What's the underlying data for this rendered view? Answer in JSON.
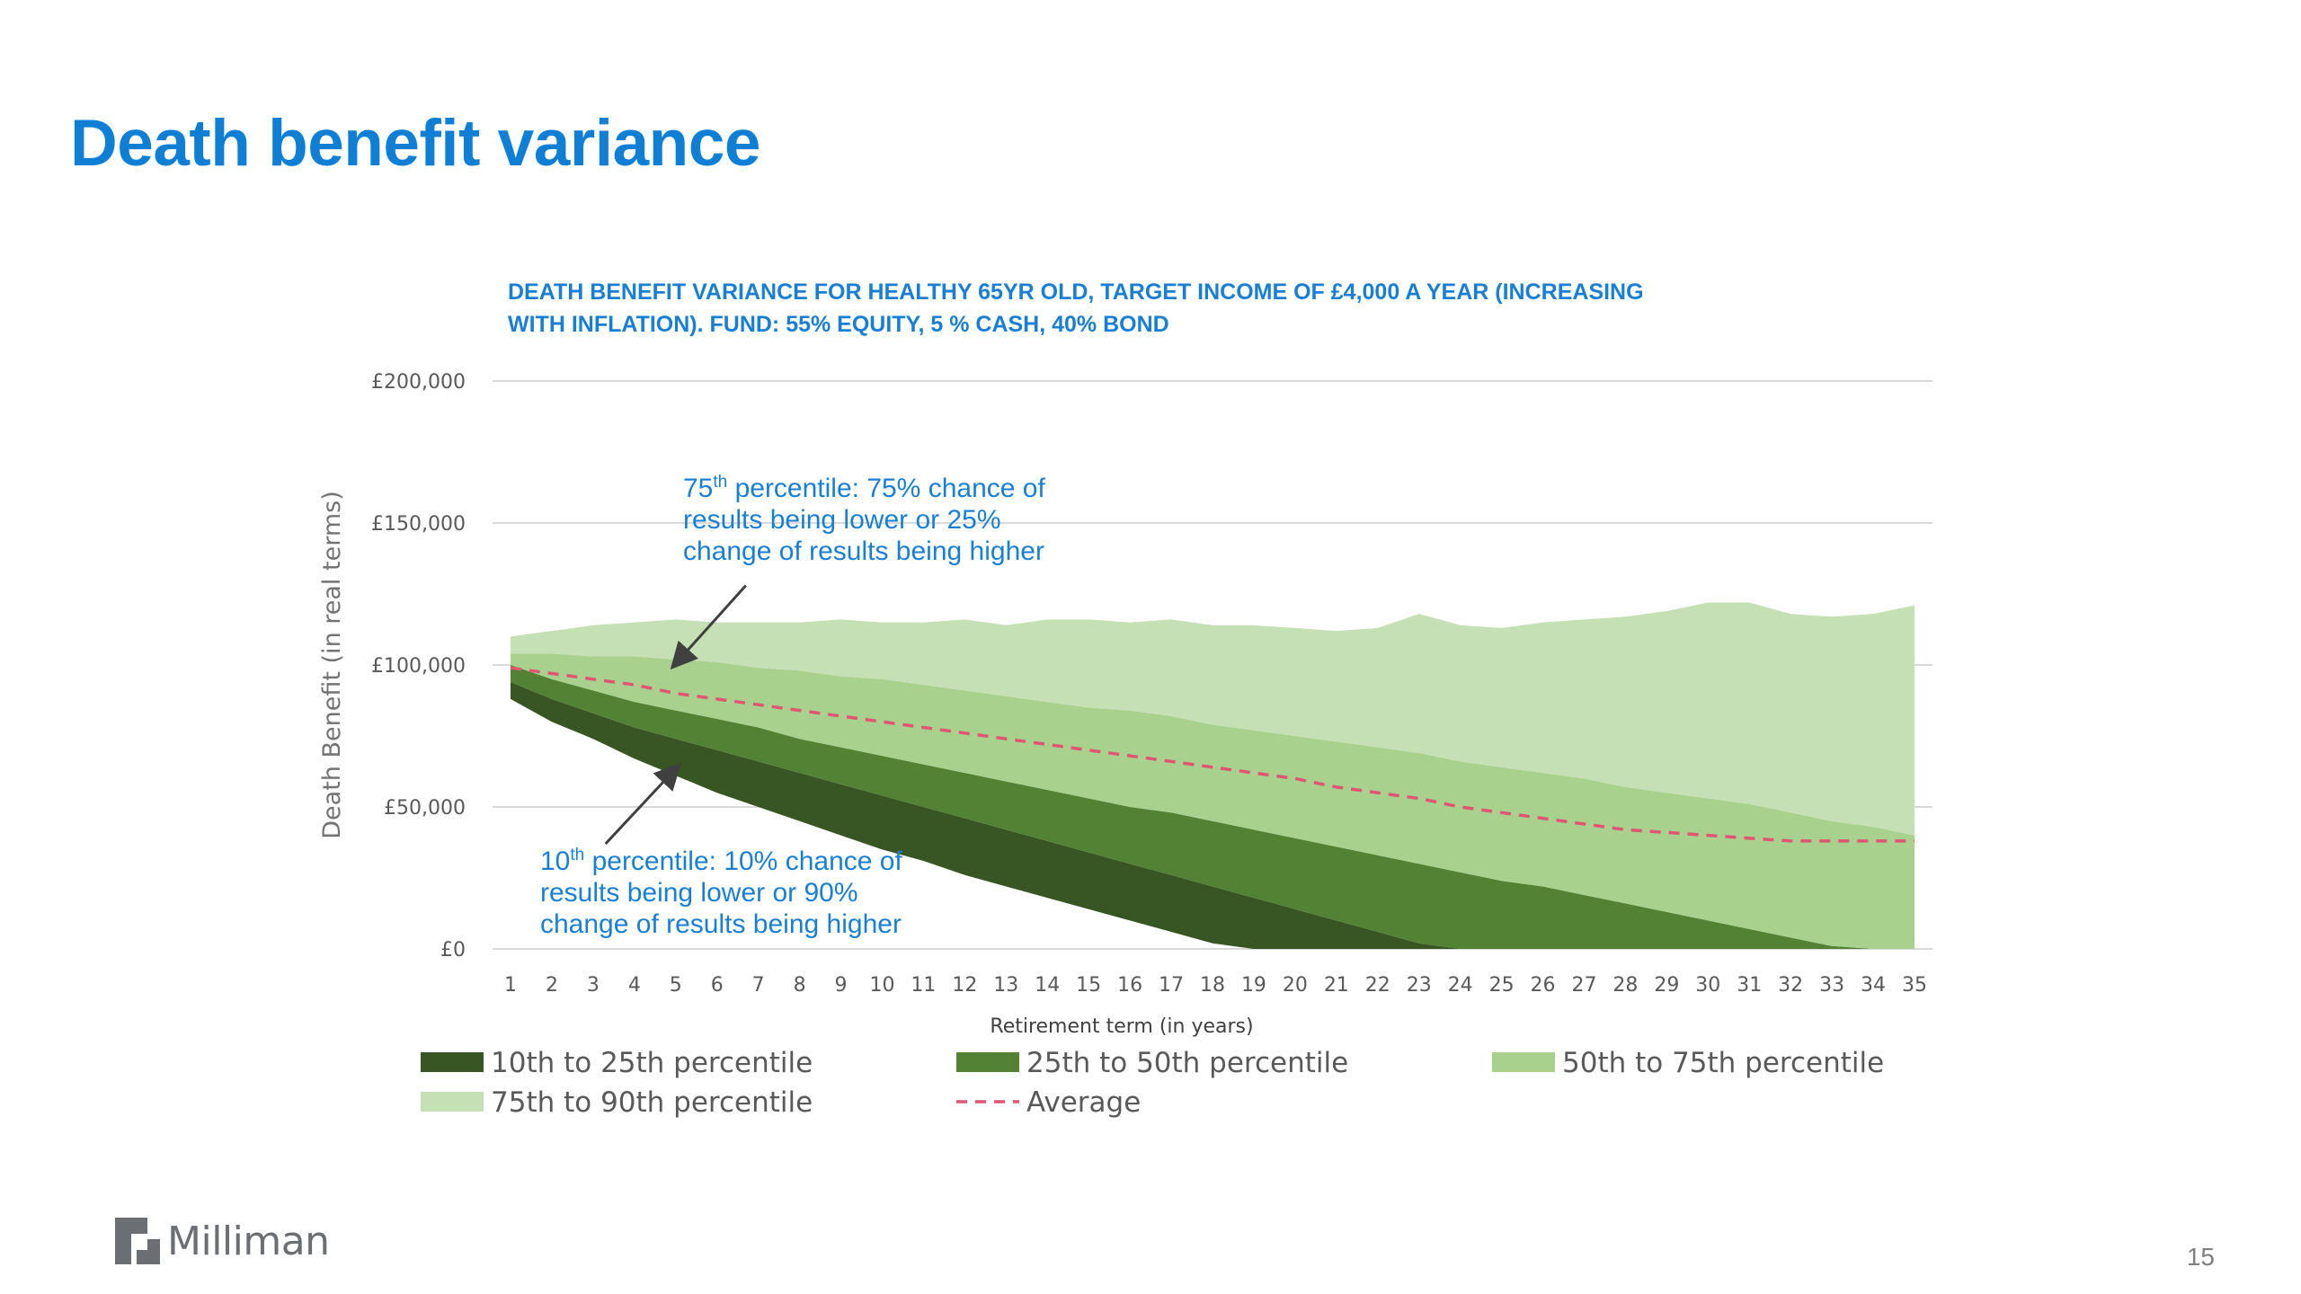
{
  "slide": {
    "title": "Death benefit variance",
    "page_number": "15",
    "logo_text": "Milliman"
  },
  "colors": {
    "title": "#0f7fd6",
    "p10_25": "#375623",
    "p25_50": "#548235",
    "p50_75": "#a9d18e",
    "p75_90": "#c5e0b4",
    "average": "#e15472"
  },
  "annotations": [
    {
      "sup_prefix": "75",
      "sup": "th",
      "lines": [
        " percentile: 75% chance of",
        "results being lower or 25%",
        "change of results being higher"
      ],
      "arrow_from_year": 6.7,
      "arrow_from_value": 128000,
      "arrow_to_year": 5.0,
      "arrow_to_value": 100500
    },
    {
      "sup_prefix": "10",
      "sup": "th",
      "lines": [
        " percentile: 10% chance of",
        "results being lower or 90%",
        "change of results being higher"
      ],
      "arrow_from_year": 3.3,
      "arrow_from_value": 37000,
      "arrow_to_year": 5.0,
      "arrow_to_value": 63500
    }
  ],
  "chart_data": {
    "type": "area",
    "title": "DEATH BENEFIT VARIANCE FOR HEALTHY 65YR OLD, TARGET INCOME OF £4,000 A YEAR (INCREASING WITH INFLATION). FUND: 55% EQUITY, 5 % CASH, 40% BOND",
    "title_lines": [
      "DEATH BENEFIT VARIANCE FOR HEALTHY 65YR OLD, TARGET INCOME OF £4,000 A YEAR (INCREASING",
      "WITH INFLATION). FUND: 55% EQUITY, 5 % CASH, 40% BOND"
    ],
    "xlabel": "Retirement term (in years)",
    "ylabel": "Death Benefit (in real terms)",
    "x": [
      1,
      2,
      3,
      4,
      5,
      6,
      7,
      8,
      9,
      10,
      11,
      12,
      13,
      14,
      15,
      16,
      17,
      18,
      19,
      20,
      21,
      22,
      23,
      24,
      25,
      26,
      27,
      28,
      29,
      30,
      31,
      32,
      33,
      34,
      35
    ],
    "ylim": [
      0,
      200000
    ],
    "yticks": [
      0,
      50000,
      100000,
      150000,
      200000
    ],
    "ytick_labels": [
      "£0",
      "£50,000",
      "£100,000",
      "£150,000",
      "£200,000"
    ],
    "grid": true,
    "legend_position": "bottom",
    "percentiles": {
      "p10": [
        88000,
        80000,
        74000,
        67000,
        61000,
        55000,
        50000,
        45000,
        40000,
        35000,
        31000,
        26000,
        22000,
        18000,
        14000,
        10000,
        6000,
        2000,
        0,
        0,
        0,
        0,
        0,
        0,
        0,
        0,
        0,
        0,
        0,
        0,
        0,
        0,
        0,
        0,
        0
      ],
      "p25": [
        94000,
        88000,
        83000,
        78000,
        74000,
        70000,
        66000,
        62000,
        58000,
        54000,
        50000,
        46000,
        42000,
        38000,
        34000,
        30000,
        26000,
        22000,
        18000,
        14000,
        10000,
        6000,
        2000,
        0,
        0,
        0,
        0,
        0,
        0,
        0,
        0,
        0,
        0,
        0,
        0
      ],
      "p50": [
        100000,
        95000,
        91000,
        87000,
        84000,
        81000,
        78000,
        74000,
        71000,
        68000,
        65000,
        62000,
        59000,
        56000,
        53000,
        50000,
        48000,
        45000,
        42000,
        39000,
        36000,
        33000,
        30000,
        27000,
        24000,
        22000,
        19000,
        16000,
        13000,
        10000,
        7000,
        4000,
        1000,
        0,
        0
      ],
      "p75": [
        104000,
        104000,
        103000,
        103000,
        102000,
        101000,
        99000,
        98000,
        96000,
        95000,
        93000,
        91000,
        89000,
        87000,
        85000,
        84000,
        82000,
        79000,
        77000,
        75000,
        73000,
        71000,
        69000,
        66000,
        64000,
        62000,
        60000,
        57000,
        55000,
        53000,
        51000,
        48000,
        45000,
        43000,
        40000
      ],
      "p90": [
        110000,
        112000,
        114000,
        115000,
        116000,
        115000,
        115000,
        115000,
        116000,
        115000,
        115000,
        116000,
        114000,
        116000,
        116000,
        115000,
        116000,
        114000,
        114000,
        113000,
        112000,
        113000,
        118000,
        114000,
        113000,
        115000,
        116000,
        117000,
        119000,
        122000,
        122000,
        118000,
        117000,
        118000,
        121000
      ],
      "average": [
        99000,
        97000,
        95000,
        93000,
        90000,
        88000,
        86000,
        84000,
        82000,
        80000,
        78000,
        76000,
        74000,
        72000,
        70000,
        68000,
        66000,
        64000,
        62000,
        60000,
        57000,
        55000,
        53000,
        50000,
        48000,
        46000,
        44000,
        42000,
        41000,
        40000,
        39000,
        38000,
        38000,
        38000,
        38000
      ]
    },
    "series": [
      {
        "name": "10th to 25th percentile",
        "kind": "band",
        "lower": "p10",
        "upper": "p25",
        "color": "#375623"
      },
      {
        "name": "25th to 50th percentile",
        "kind": "band",
        "lower": "p25",
        "upper": "p50",
        "color": "#548235"
      },
      {
        "name": "50th to 75th percentile",
        "kind": "band",
        "lower": "p50",
        "upper": "p75",
        "color": "#a9d18e"
      },
      {
        "name": "75th to 90th percentile",
        "kind": "band",
        "lower": "p75",
        "upper": "p90",
        "color": "#c5e0b4"
      },
      {
        "name": "Average",
        "kind": "line",
        "values": "average",
        "color": "#e15472",
        "dashed": true
      }
    ]
  }
}
